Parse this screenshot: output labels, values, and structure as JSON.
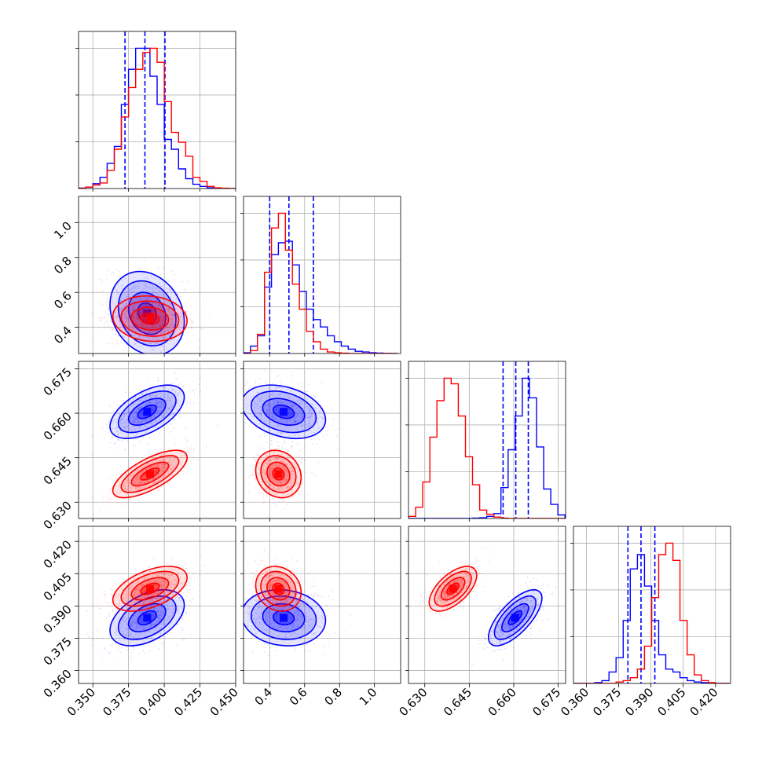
{
  "colors": {
    "blue": "#0000ff",
    "red": "#ff0000",
    "grid": "#b0b0b0",
    "frame": "#000000"
  },
  "chart_data": {
    "type": "corner",
    "parameters": [
      {
        "ticks": [
          "0.350",
          "0.375",
          "0.400",
          "0.425",
          "0.450"
        ],
        "range": [
          0.34,
          0.45
        ]
      },
      {
        "ticks": [
          "0.4",
          "0.6",
          "0.8",
          "1.0"
        ],
        "range": [
          0.25,
          1.15
        ]
      },
      {
        "ticks": [
          "0.630",
          "0.645",
          "0.660",
          "0.675"
        ],
        "range": [
          0.6245,
          0.6775
        ]
      },
      {
        "ticks": [
          "0.360",
          "0.375",
          "0.390",
          "0.405",
          "0.420"
        ],
        "range": [
          0.354,
          0.427
        ]
      }
    ],
    "series": [
      {
        "color": "#0000ff",
        "means": [
          0.388,
          0.48,
          0.6605,
          0.3845
        ],
        "sigmas": [
          0.013,
          0.12,
          0.0045,
          0.0065
        ],
        "correlations": [
          [
            0,
            1,
            -0.2
          ],
          [
            0,
            2,
            0.55
          ],
          [
            1,
            2,
            -0.3
          ],
          [
            0,
            3,
            0.45
          ],
          [
            1,
            3,
            -0.1
          ],
          [
            2,
            3,
            0.7
          ]
        ],
        "quantiles": [
          [
            0.3725,
            0.3865,
            0.4005
          ],
          [
            0.4,
            0.51,
            0.65
          ],
          [
            0.6564,
            0.6607,
            0.6649
          ],
          [
            0.3793,
            0.3854,
            0.3918
          ]
        ],
        "histograms": [
          {
            "edges": [
              0.34,
              0.345,
              0.35,
              0.355,
              0.36,
              0.365,
              0.37,
              0.375,
              0.38,
              0.385,
              0.39,
              0.395,
              0.4,
              0.405,
              0.41,
              0.415,
              0.42,
              0.425,
              0.43,
              0.435,
              0.44,
              0.445,
              0.45
            ],
            "counts": [
              0.3,
              1.0,
              3.5,
              8,
              18,
              30,
              60,
              85,
              100,
              100,
              80,
              60,
              35,
              28,
              14,
              7,
              3,
              1.5,
              0.5,
              0.3,
              0.1,
              0.05
            ]
          },
          {
            "edges": [
              0.25,
              0.29,
              0.33,
              0.37,
              0.41,
              0.45,
              0.49,
              0.53,
              0.57,
              0.61,
              0.65,
              0.69,
              0.73,
              0.77,
              0.81,
              0.85,
              0.89,
              0.93,
              0.97,
              1.01,
              1.05,
              1.09,
              1.13
            ],
            "counts": [
              0.5,
              5,
              12,
              45,
              67,
              75,
              76,
              60,
              42,
              30,
              23,
              18,
              12,
              8,
              5,
              3,
              1.5,
              1,
              0.5,
              0.3,
              0.1,
              0.05
            ]
          },
          {
            "edges": [
              0.6245,
              0.6269,
              0.6293,
              0.6317,
              0.6341,
              0.6365,
              0.6389,
              0.6413,
              0.6437,
              0.6461,
              0.6485,
              0.6509,
              0.6533,
              0.6557,
              0.6581,
              0.6605,
              0.6629,
              0.6653,
              0.6677,
              0.6701,
              0.6725,
              0.6749,
              0.6773
            ],
            "counts": [
              0,
              0,
              0,
              0,
              0,
              0,
              0,
              0,
              0,
              0.2,
              0.5,
              1.5,
              3.5,
              22,
              49,
              73,
              100,
              86,
              51,
              21,
              10,
              2.5
            ]
          },
          {
            "edges": [
              0.354,
              0.3573,
              0.3606,
              0.3639,
              0.3672,
              0.3705,
              0.3738,
              0.3771,
              0.3804,
              0.3837,
              0.387,
              0.3903,
              0.3936,
              0.3969,
              0.4002,
              0.4035,
              0.4068,
              0.4101,
              0.4134,
              0.4167,
              0.42,
              0.4233,
              0.4266
            ],
            "counts": [
              0,
              0,
              0,
              0.3,
              1,
              4,
              9,
              22,
              40,
              45,
              34,
              22,
              10,
              5,
              4,
              2,
              1,
              0.5,
              0.3,
              0,
              0,
              0
            ]
          }
        ]
      },
      {
        "color": "#ff0000",
        "means": [
          0.39,
          0.45,
          0.6395,
          0.398
        ],
        "sigmas": [
          0.013,
          0.065,
          0.004,
          0.0052
        ],
        "correlations": [
          [
            0,
            1,
            -0.1
          ],
          [
            0,
            2,
            0.7
          ],
          [
            1,
            2,
            -0.15
          ],
          [
            0,
            3,
            0.5
          ],
          [
            1,
            3,
            -0.15
          ],
          [
            2,
            3,
            0.6
          ]
        ],
        "quantiles": null,
        "histograms": [
          {
            "edges": [
              0.34,
              0.345,
              0.35,
              0.355,
              0.36,
              0.365,
              0.37,
              0.375,
              0.38,
              0.385,
              0.39,
              0.395,
              0.4,
              0.405,
              0.41,
              0.415,
              0.42,
              0.425,
              0.43,
              0.435,
              0.44,
              0.445,
              0.45
            ],
            "counts": [
              0.2,
              1.0,
              2.5,
              4,
              13,
              28,
              51,
              72,
              85,
              97,
              100,
              90,
              62,
              40,
              33,
              23,
              8,
              5,
              1.5,
              0.5,
              0.2,
              0.05
            ]
          },
          {
            "edges": [
              0.25,
              0.29,
              0.33,
              0.37,
              0.41,
              0.45,
              0.49,
              0.53,
              0.57,
              0.61,
              0.65,
              0.69,
              0.73,
              0.77,
              0.81,
              0.85,
              0.89,
              0.93,
              0.97,
              1.01,
              1.05,
              1.09,
              1.13
            ],
            "counts": [
              0,
              2,
              13,
              55,
              85,
              95,
              70,
              47,
              30,
              15,
              8,
              3,
              1,
              0.5,
              0.2,
              0,
              0,
              0,
              0,
              0,
              0,
              0
            ]
          },
          {
            "edges": [
              0.6245,
              0.6269,
              0.6293,
              0.6317,
              0.6341,
              0.6365,
              0.6389,
              0.6413,
              0.6437,
              0.6461,
              0.6485,
              0.6509,
              0.6533,
              0.6557,
              0.6581,
              0.6605,
              0.6629,
              0.6653,
              0.6677,
              0.6701,
              0.6725,
              0.6749,
              0.6773
            ],
            "counts": [
              1.5,
              8,
              26,
              58,
              84,
              100,
              96,
              73,
              44,
              24,
              6,
              3,
              1,
              0.2,
              0,
              0,
              0,
              0,
              0,
              0,
              0,
              0
            ]
          },
          {
            "edges": [
              0.354,
              0.3573,
              0.3606,
              0.3639,
              0.3672,
              0.3705,
              0.3738,
              0.3771,
              0.3804,
              0.3837,
              0.387,
              0.3903,
              0.3936,
              0.3969,
              0.4002,
              0.4035,
              0.4068,
              0.4101,
              0.4134,
              0.4167,
              0.42,
              0.4233,
              0.4266
            ],
            "counts": [
              0,
              0,
              0,
              0,
              0,
              0,
              0.5,
              1,
              2,
              5,
              13,
              30,
              45,
              49,
              43,
              22,
              10,
              3,
              1,
              0.3,
              0,
              0
            ]
          }
        ]
      }
    ]
  }
}
